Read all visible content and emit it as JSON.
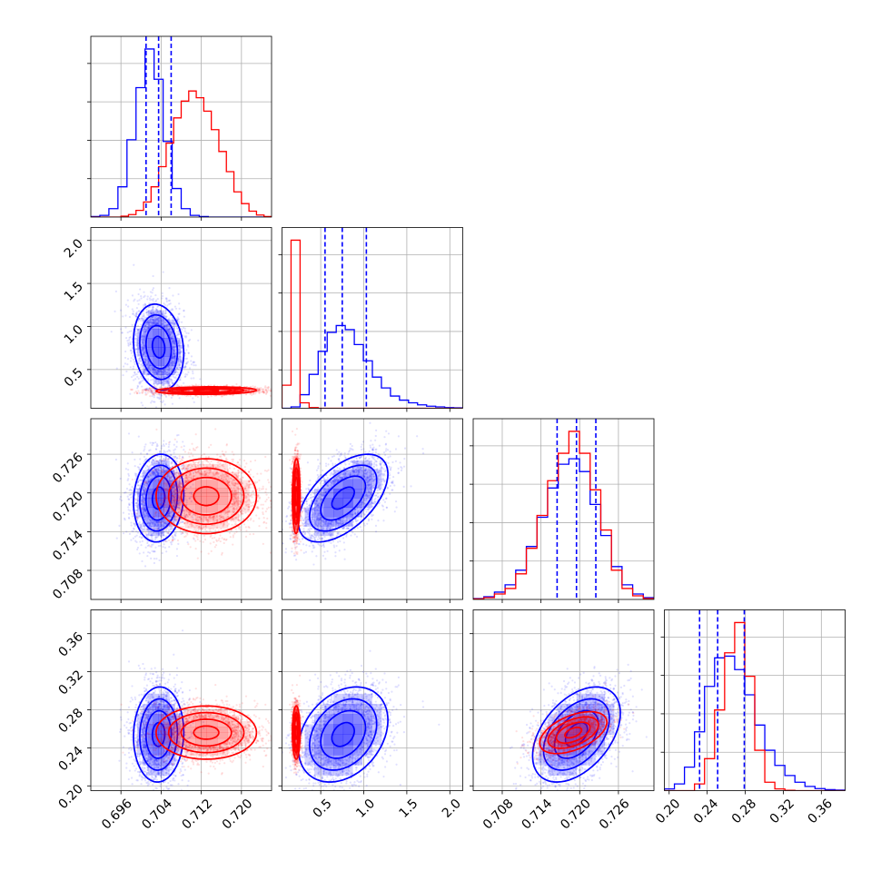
{
  "chart_data": {
    "type": "corner",
    "n_params": 4,
    "colors": {
      "a": "#0000ff",
      "b": "#ff0000",
      "grid": "#b0b0b0",
      "quantile": "#0000ff"
    },
    "grid": true,
    "params": [
      {
        "range": [
          0.69,
          0.726
        ],
        "ticks": [
          0.696,
          0.704,
          0.712,
          0.72
        ],
        "tick_labels": [
          "0.696",
          "0.704",
          "0.712",
          "0.720"
        ]
      },
      {
        "range": [
          0.05,
          2.15
        ],
        "ticks": [
          0.5,
          1.0,
          1.5,
          2.0
        ],
        "tick_labels": [
          "0.5",
          "1.0",
          "1.5",
          "2.0"
        ]
      },
      {
        "range": [
          0.7035,
          0.7315
        ],
        "ticks": [
          0.708,
          0.714,
          0.72,
          0.726
        ],
        "tick_labels": [
          "0.708",
          "0.714",
          "0.720",
          "0.726"
        ]
      },
      {
        "range": [
          0.195,
          0.385
        ],
        "ticks": [
          0.2,
          0.24,
          0.28,
          0.32,
          0.36
        ],
        "tick_labels": [
          "0.20",
          "0.24",
          "0.28",
          "0.32",
          "0.36"
        ]
      }
    ],
    "quantiles": [
      [
        0.701,
        0.7035,
        0.706
      ],
      [
        0.55,
        0.75,
        1.03
      ],
      [
        0.7165,
        0.7195,
        0.7225
      ],
      [
        0.232,
        0.251,
        0.279
      ]
    ],
    "hist_a": [
      [
        0.3,
        1,
        5,
        18,
        46,
        77,
        100,
        82,
        45,
        17,
        5,
        1,
        0.3,
        0,
        0,
        0,
        0,
        0,
        0,
        0
      ],
      [
        0,
        1,
        10,
        25,
        42,
        56,
        61,
        58,
        47,
        35,
        23,
        15,
        9,
        6,
        4,
        2.5,
        1.5,
        1,
        0.5,
        0.3
      ],
      [
        0.5,
        1.5,
        4,
        8,
        16,
        29,
        45,
        61,
        74,
        77,
        70,
        52,
        35,
        18,
        8,
        3,
        1
      ],
      [
        1,
        4,
        14,
        35,
        62,
        79,
        80,
        72,
        57,
        39,
        24,
        15,
        9,
        5,
        2.5,
        1.2,
        0.6,
        0.3
      ]
    ],
    "hist_b": [
      [
        0,
        0,
        0,
        0,
        0.5,
        1.5,
        4,
        9,
        18,
        30,
        44,
        59,
        69,
        75,
        71,
        63,
        52,
        39,
        27,
        15,
        8,
        3.5,
        1.2,
        0.3
      ],
      [
        17,
        124,
        4,
        0.5,
        0,
        0,
        0,
        0,
        0,
        0,
        0,
        0,
        0,
        0,
        0,
        0,
        0,
        0,
        0,
        0
      ],
      [
        0.3,
        1,
        3,
        6,
        14,
        28,
        46,
        65,
        80,
        92,
        80,
        60,
        38,
        16,
        6,
        2,
        0.5
      ],
      [
        0,
        0,
        0,
        4,
        19,
        48,
        82,
        100,
        68,
        24,
        5,
        1,
        0.2,
        0,
        0,
        0,
        0,
        0
      ]
    ],
    "dists_a": [
      {
        "mean": [
          0.7035,
          0.76
        ],
        "sd": [
          0.0025,
          0.25
        ],
        "rho": -0.15,
        "n": 2500,
        "peak_sq": 0.6
      },
      {
        "mean": [
          0.7035,
          0.7192
        ],
        "sd": [
          0.0025,
          0.0034
        ],
        "rho": 0.1,
        "n": 2300,
        "peak_sq": 0.6
      },
      {
        "mean": [
          0.76,
          0.7192
        ],
        "sd": [
          0.26,
          0.0034
        ],
        "rho": 0.55,
        "n": 2300,
        "peak_sq": 0.6
      },
      {
        "mean": [
          0.7035,
          0.254
        ],
        "sd": [
          0.0025,
          0.025
        ],
        "rho": 0.05,
        "n": 2300,
        "peak_sq": 0.6
      },
      {
        "mean": [
          0.76,
          0.254
        ],
        "sd": [
          0.26,
          0.025
        ],
        "rho": 0.3,
        "n": 2300,
        "peak_sq": 0.6
      },
      {
        "mean": [
          0.7195,
          0.254
        ],
        "sd": [
          0.0034,
          0.025
        ],
        "rho": 0.45,
        "n": 2300,
        "peak_sq": 0.6
      }
    ],
    "dists_b": [
      {
        "mean": [
          0.713,
          0.255
        ],
        "sd": [
          0.005,
          0.022
        ],
        "rho": 0.1,
        "n": 2500,
        "peak_sq": 0.4
      },
      {
        "mean": [
          0.713,
          0.7195
        ],
        "sd": [
          0.005,
          0.0029
        ],
        "rho": 0.0,
        "n": 2300,
        "peak_sq": 0.4
      },
      {
        "mean": [
          0.215,
          0.7195
        ],
        "sd": [
          0.022,
          0.0029
        ],
        "rho": 0.05,
        "n": 2300,
        "peak_sq": 0.6
      },
      {
        "mean": [
          0.713,
          0.256
        ],
        "sd": [
          0.005,
          0.014
        ],
        "rho": 0.0,
        "n": 2300,
        "peak_sq": 0.4
      },
      {
        "mean": [
          0.215,
          0.256
        ],
        "sd": [
          0.022,
          0.014
        ],
        "rho": 0.0,
        "n": 2300,
        "peak_sq": 0.6
      },
      {
        "mean": [
          0.719,
          0.256
        ],
        "sd": [
          0.0026,
          0.011
        ],
        "rho": 0.5,
        "n": 2300,
        "peak_sq": 0.4
      }
    ],
    "contour_levels_sigma": [
      0.5,
      1.0,
      1.5,
      2.0
    ]
  }
}
